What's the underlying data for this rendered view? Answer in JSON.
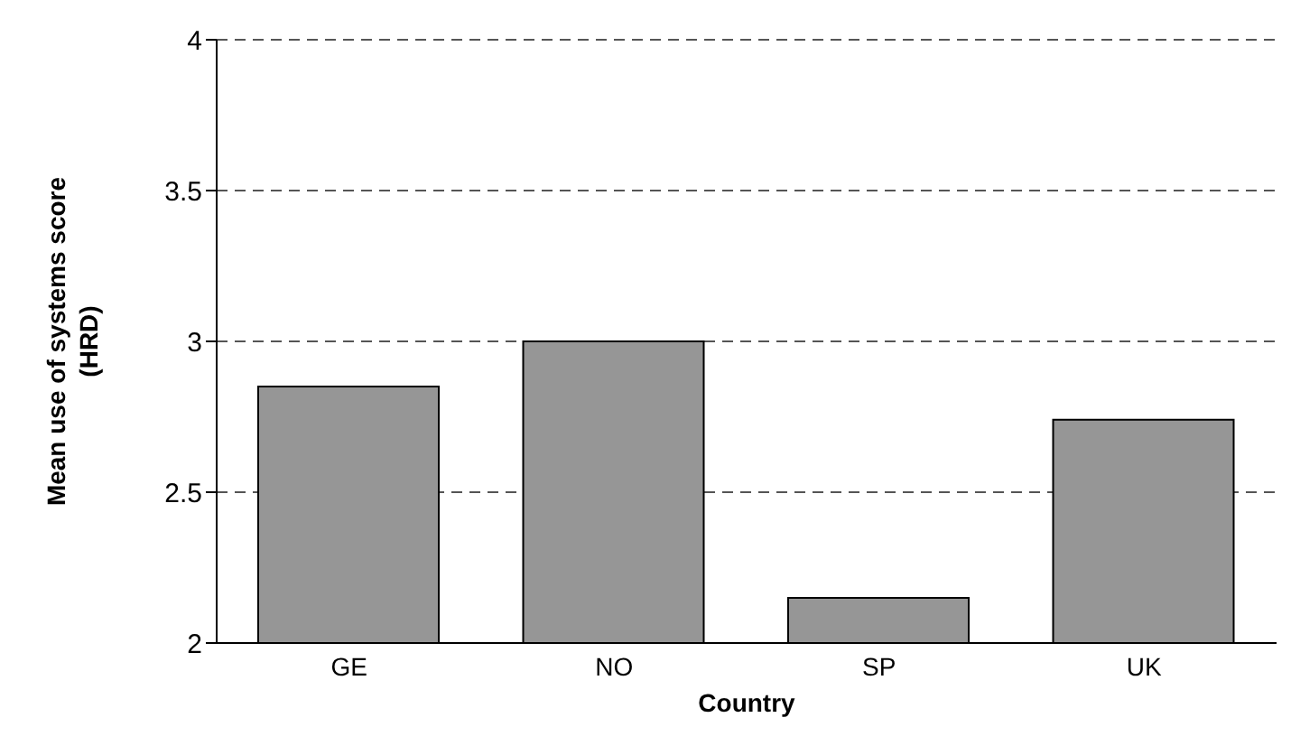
{
  "chart_data": {
    "type": "bar",
    "xlabel": "Country",
    "ylabel": "Mean use of systems score (HRD)",
    "categories": [
      "GE",
      "NO",
      "SP",
      "UK"
    ],
    "values": [
      2.85,
      3.0,
      2.15,
      2.74
    ],
    "color": "#969696",
    "ylim": [
      2,
      4
    ],
    "yticks": [
      2,
      2.5,
      3,
      3.5,
      4
    ],
    "grid": "y",
    "legend": false
  }
}
